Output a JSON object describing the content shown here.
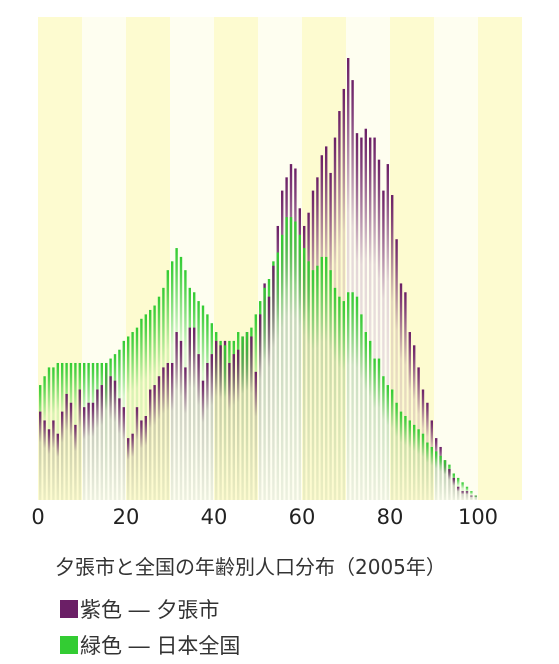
{
  "chart_data": {
    "type": "bar",
    "title": "夕張市と全国の年齢別人口分布（2005年）",
    "xlabel": "",
    "ylabel": "",
    "xlim": [
      0,
      110
    ],
    "ylim": [
      0,
      100
    ],
    "x_ticks": [
      "0",
      "20",
      "40",
      "60",
      "80",
      "100"
    ],
    "colors": {
      "yubari": "#6b1f66",
      "japan": "#33cc33",
      "band_a": "#fdfbd0",
      "band_b": "#fefef0"
    },
    "legend": [
      {
        "swatch": "#6b1f66",
        "label": "紫色 ― 夕張市"
      },
      {
        "swatch": "#33cc33",
        "label": "緑色 ― 日本全国"
      }
    ],
    "series": [
      {
        "name": "夕張市",
        "color": "#6b1f66",
        "values": [
          20,
          18,
          16,
          18,
          15,
          20,
          24,
          22,
          17,
          25,
          21,
          22,
          22,
          25,
          26,
          31,
          28,
          27,
          23,
          21,
          14,
          15,
          21,
          18,
          19,
          25,
          26,
          28,
          30,
          31,
          31,
          38,
          36,
          30,
          39,
          39,
          33,
          27,
          31,
          33,
          36,
          35,
          36,
          31,
          33,
          34,
          37,
          38,
          37,
          29,
          42,
          49,
          46,
          53,
          62,
          70,
          73,
          76,
          75,
          66,
          62,
          65,
          70,
          73,
          78,
          80,
          74,
          82,
          88,
          93,
          100,
          95,
          83,
          82,
          84,
          82,
          82,
          77,
          70,
          76,
          69,
          59,
          49,
          47,
          38,
          35,
          30,
          25,
          22,
          18,
          14,
          12,
          9,
          7,
          5,
          3,
          2,
          2,
          1,
          1,
          0
        ]
      },
      {
        "name": "日本全国",
        "color": "#33cc33",
        "values": [
          26,
          28,
          30,
          30,
          31,
          31,
          31,
          31,
          31,
          31,
          31,
          31,
          31,
          31,
          31,
          31,
          32,
          33,
          34,
          36,
          37,
          38,
          39,
          41,
          42,
          43,
          44,
          46,
          48,
          52,
          54,
          57,
          55,
          52,
          48,
          47,
          45,
          44,
          42,
          40,
          38,
          36,
          35,
          36,
          36,
          38,
          37,
          38,
          39,
          42,
          45,
          48,
          50,
          54,
          56,
          60,
          64,
          64,
          63,
          60,
          57,
          54,
          52,
          53,
          55,
          55,
          52,
          48,
          46,
          45,
          47,
          47,
          46,
          42,
          38,
          36,
          32,
          32,
          28,
          26,
          25,
          22,
          20,
          19,
          18,
          17,
          16,
          15,
          13,
          12,
          11,
          10,
          9,
          8,
          6,
          5,
          4,
          3,
          2,
          1,
          0
        ]
      }
    ]
  },
  "caption": "夕張市と全国の年齢別人口分布（2005年）",
  "legend": {
    "yubari": {
      "label": "紫色 ― 夕張市",
      "color": "#6b1f66"
    },
    "japan": {
      "label": "緑色 ― 日本全国",
      "color": "#33cc33"
    }
  }
}
